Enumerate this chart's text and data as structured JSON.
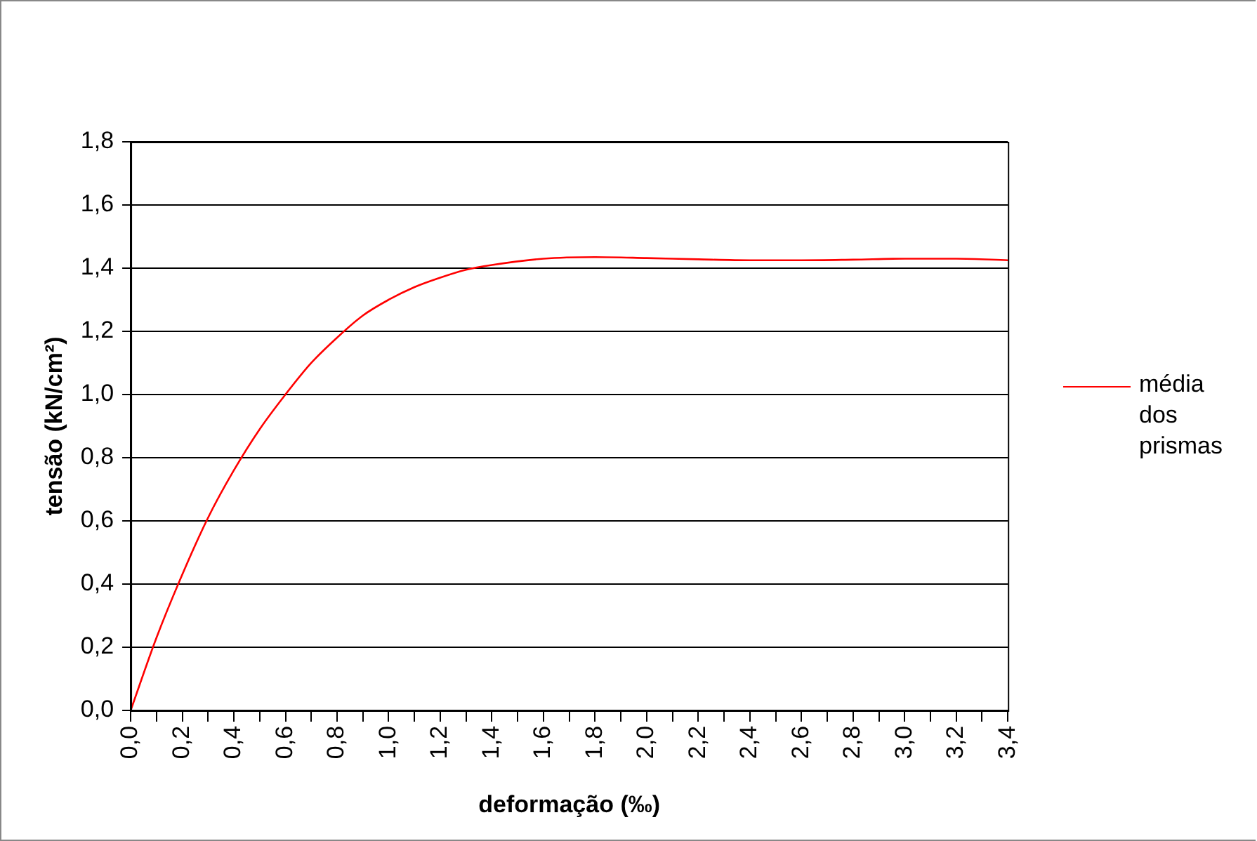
{
  "chart_data": {
    "type": "line",
    "xlabel": "deformação (‰)",
    "ylabel": "tensão (kN/cm²)",
    "x": [
      0,
      0.1,
      0.2,
      0.3,
      0.4,
      0.5,
      0.6,
      0.7,
      0.8,
      0.9,
      1.0,
      1.1,
      1.2,
      1.3,
      1.4,
      1.6,
      1.8,
      2.0,
      2.2,
      2.4,
      2.6,
      2.8,
      3.0,
      3.2,
      3.4
    ],
    "series": [
      {
        "name": "média dos prismas",
        "color": "#ff0000",
        "values": [
          0,
          0.23,
          0.43,
          0.61,
          0.76,
          0.89,
          1.0,
          1.1,
          1.18,
          1.25,
          1.3,
          1.34,
          1.37,
          1.395,
          1.41,
          1.43,
          1.435,
          1.432,
          1.428,
          1.425,
          1.425,
          1.427,
          1.43,
          1.43,
          1.425
        ]
      }
    ],
    "xlim": [
      0,
      3.4
    ],
    "xticks": [
      {
        "value": 0,
        "label": "0,0"
      },
      {
        "value": 0.1,
        "label": null
      },
      {
        "value": 0.2,
        "label": "0,2"
      },
      {
        "value": 0.3,
        "label": null
      },
      {
        "value": 0.4,
        "label": "0,4"
      },
      {
        "value": 0.5,
        "label": null
      },
      {
        "value": 0.6,
        "label": "0,6"
      },
      {
        "value": 0.7,
        "label": null
      },
      {
        "value": 0.8,
        "label": "0,8"
      },
      {
        "value": 0.9,
        "label": null
      },
      {
        "value": 1.0,
        "label": "1,0"
      },
      {
        "value": 1.1,
        "label": null
      },
      {
        "value": 1.2,
        "label": "1,2"
      },
      {
        "value": 1.3,
        "label": null
      },
      {
        "value": 1.4,
        "label": "1,4"
      },
      {
        "value": 1.5,
        "label": null
      },
      {
        "value": 1.6,
        "label": "1,6"
      },
      {
        "value": 1.7,
        "label": null
      },
      {
        "value": 1.8,
        "label": "1,8"
      },
      {
        "value": 1.9,
        "label": null
      },
      {
        "value": 2.0,
        "label": "2,0"
      },
      {
        "value": 2.1,
        "label": null
      },
      {
        "value": 2.2,
        "label": "2,2"
      },
      {
        "value": 2.3,
        "label": null
      },
      {
        "value": 2.4,
        "label": "2,4"
      },
      {
        "value": 2.5,
        "label": null
      },
      {
        "value": 2.6,
        "label": "2,6"
      },
      {
        "value": 2.7,
        "label": null
      },
      {
        "value": 2.8,
        "label": "2,8"
      },
      {
        "value": 2.9,
        "label": null
      },
      {
        "value": 3.0,
        "label": "3,0"
      },
      {
        "value": 3.1,
        "label": null
      },
      {
        "value": 3.2,
        "label": "3,2"
      },
      {
        "value": 3.3,
        "label": null
      },
      {
        "value": 3.4,
        "label": "3,4"
      }
    ],
    "ylim": [
      0,
      1.8
    ],
    "yticks": [
      {
        "value": 0,
        "label": "0,0"
      },
      {
        "value": 0.2,
        "label": "0,2"
      },
      {
        "value": 0.4,
        "label": "0,4"
      },
      {
        "value": 0.6,
        "label": "0,6"
      },
      {
        "value": 0.8,
        "label": "0,8"
      },
      {
        "value": 1.0,
        "label": "1,0"
      },
      {
        "value": 1.2,
        "label": "1,2"
      },
      {
        "value": 1.4,
        "label": "1,4"
      },
      {
        "value": 1.6,
        "label": "1,6"
      },
      {
        "value": 1.8,
        "label": "1,8"
      }
    ],
    "grid": "y",
    "legend": "right",
    "marker": "none",
    "line_style": "solid"
  }
}
